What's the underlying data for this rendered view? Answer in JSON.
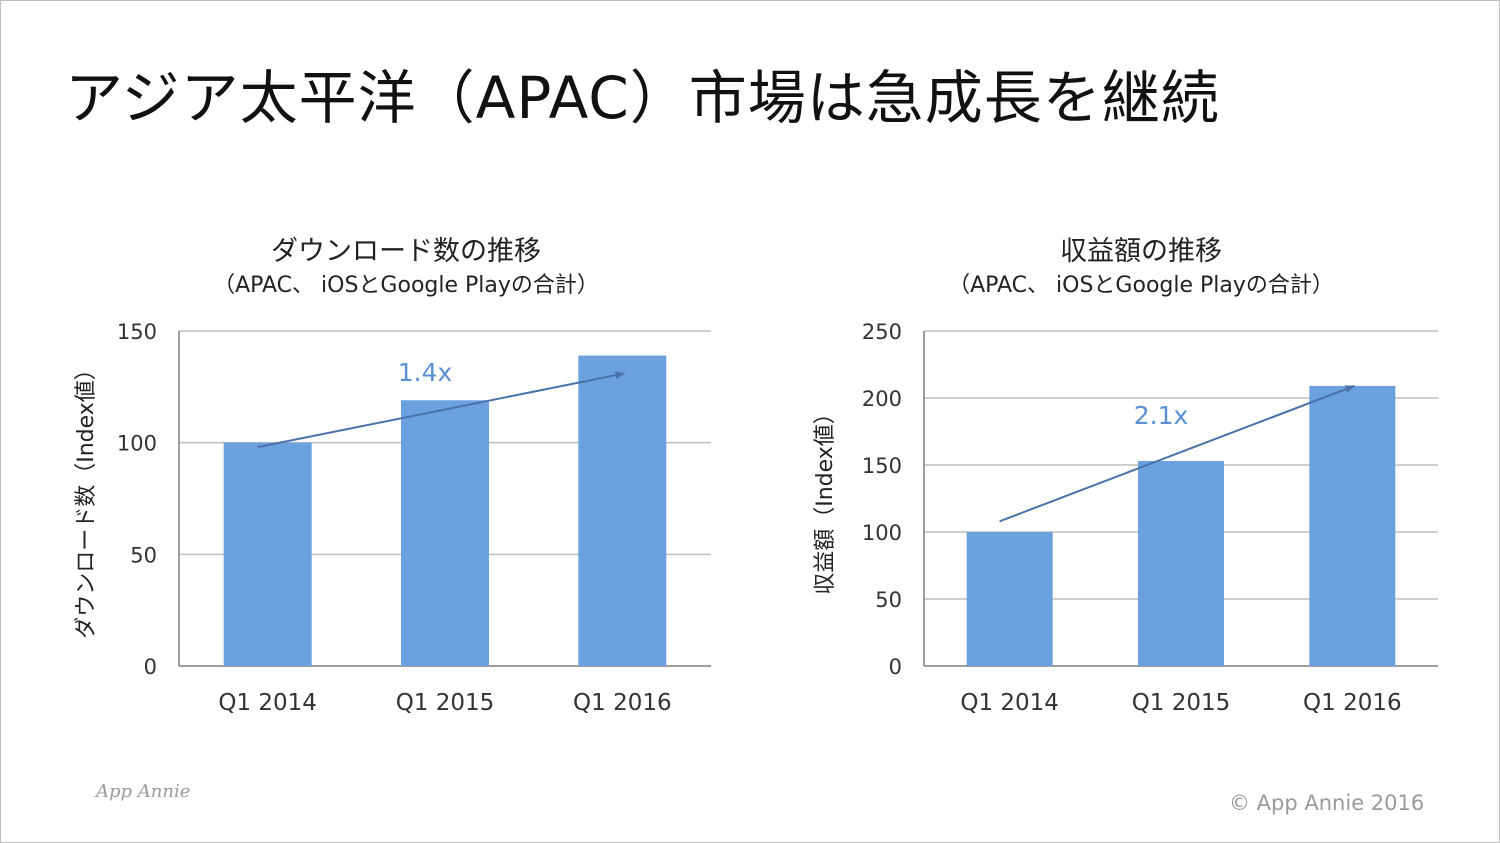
{
  "slide": {
    "title": "アジア太平洋（APAC）市場は急成長を継続",
    "logo": "App Annie",
    "copyright": "© App Annie 2016"
  },
  "chart_data": [
    {
      "type": "bar",
      "title": "ダウンロード数の推移",
      "subtitle": "（APAC、 iOSとGoogle Playの合計）",
      "ylabel": "ダウンロード数（Index値）",
      "xlabel": "",
      "categories": [
        "Q1 2014",
        "Q1 2015",
        "Q1 2016"
      ],
      "values": [
        100,
        119,
        139
      ],
      "ylim": [
        0,
        150
      ],
      "yticks": [
        0,
        50,
        100,
        150
      ],
      "grid": true,
      "bar_color": "#6ca1e0",
      "annotation": {
        "text": "1.4x",
        "from": {
          "category": "Q1 2014",
          "value": 98
        },
        "to": {
          "category": "Q1 2016",
          "value": 131
        },
        "label_at": {
          "category": "Q1 2015",
          "value": 132
        }
      }
    },
    {
      "type": "bar",
      "title": "収益額の推移",
      "subtitle": "（APAC、 iOSとGoogle Playの合計）",
      "ylabel": "収益額（Index値）",
      "xlabel": "",
      "categories": [
        "Q1 2014",
        "Q1 2015",
        "Q1 2016"
      ],
      "values": [
        100,
        153,
        209
      ],
      "ylim": [
        0,
        250
      ],
      "yticks": [
        0,
        50,
        100,
        150,
        200,
        250
      ],
      "grid": true,
      "bar_color": "#6ca1e0",
      "annotation": {
        "text": "2.1x",
        "from": {
          "category": "Q1 2014",
          "value": 108
        },
        "to": {
          "category": "Q1 2016",
          "value": 209
        },
        "label_at": {
          "category": "Q1 2015",
          "value": 188
        }
      }
    }
  ],
  "colors": {
    "bar": "#6ca1e0",
    "arrow": "#4a72a8",
    "annotation_text": "#5b8fd3",
    "grid": "#bfbfbf",
    "axis": "#7f7f7f",
    "tick_text": "#333333"
  }
}
